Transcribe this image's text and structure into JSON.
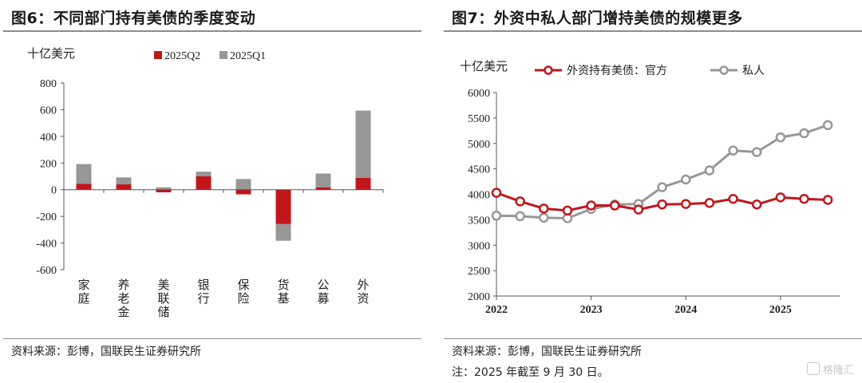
{
  "left": {
    "title": "图6：不同部门持有美债的季度变动",
    "source": "资料来源：彭博，国联民生证券研究所"
  },
  "right": {
    "title": "图7：外资中私人部门增持美债的规模更多",
    "source": "资料来源：彭博，国联民生证券研究所",
    "note": "注：2025 年截至 9 月 30 日。"
  },
  "watermark": "格隆汇",
  "colors": {
    "red": "#c0161c",
    "gray": "#979797"
  },
  "chart_data": [
    {
      "type": "bar",
      "stacked": true,
      "unit_label": "十亿美元",
      "categories": [
        "家庭",
        "养老金",
        "美联储",
        "银行",
        "保险",
        "货基",
        "公募",
        "外资"
      ],
      "series": [
        {
          "name": "2025Q2",
          "color": "#c0161c",
          "values": [
            45,
            40,
            -20,
            100,
            -35,
            -258,
            18,
            88
          ]
        },
        {
          "name": "2025Q1",
          "color": "#979797",
          "values": [
            147,
            52,
            18,
            35,
            80,
            -125,
            103,
            505
          ]
        }
      ],
      "ylim": [
        -600,
        800
      ],
      "yticks": [
        -600,
        -400,
        -200,
        0,
        200,
        400,
        600,
        800
      ],
      "legend_position": "top"
    },
    {
      "type": "line",
      "unit_label": "十亿美元",
      "x": [
        "2022Q1",
        "2022Q2",
        "2022Q3",
        "2022Q4",
        "2023Q1",
        "2023Q2",
        "2023Q3",
        "2023Q4",
        "2024Q1",
        "2024Q2",
        "2024Q3",
        "2024Q4",
        "2025Q1",
        "2025Q2",
        "2025Q3"
      ],
      "series": [
        {
          "name": "外资持有美债：官方",
          "color": "#c0161c",
          "values": [
            4030,
            3860,
            3720,
            3680,
            3780,
            3780,
            3700,
            3800,
            3810,
            3830,
            3910,
            3800,
            3940,
            3910,
            3890
          ]
        },
        {
          "name": "私人",
          "color": "#979797",
          "values": [
            3580,
            3570,
            3540,
            3530,
            3710,
            3800,
            3810,
            4140,
            4290,
            4470,
            4860,
            4830,
            5120,
            5200,
            5360
          ]
        }
      ],
      "ylim": [
        2000,
        6000
      ],
      "yticks": [
        2000,
        2500,
        3000,
        3500,
        4000,
        4500,
        5000,
        5500,
        6000
      ],
      "xticks": [
        "2022",
        "2023",
        "2024",
        "2025"
      ],
      "legend_position": "top"
    }
  ]
}
